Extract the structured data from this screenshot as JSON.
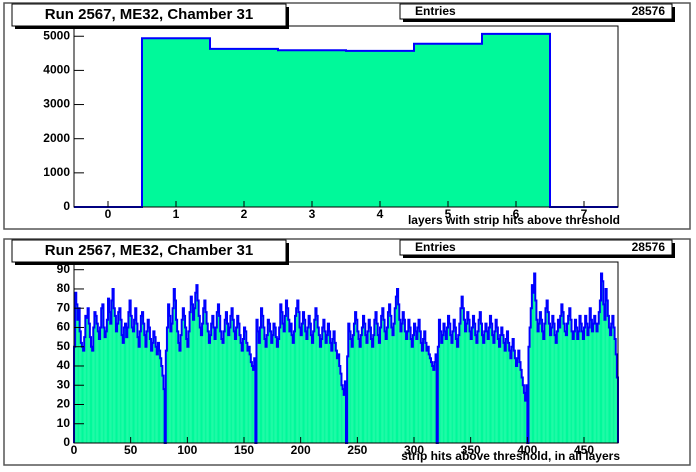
{
  "chart_data": [
    {
      "type": "histogram",
      "title": "Run 2567, ME32, Chamber 31",
      "stats": {
        "label": "Entries",
        "value": 28576
      },
      "x_label": "layers with strip hits above threshold",
      "values": [
        0,
        4940,
        4630,
        4590,
        4570,
        4780,
        5070,
        0
      ],
      "xlim": [
        -0.5,
        7.5
      ],
      "xticks": [
        0,
        1,
        2,
        3,
        4,
        5,
        6,
        7
      ],
      "ylim": [
        0,
        5300
      ],
      "yticks": [
        0,
        1000,
        2000,
        3000,
        4000,
        5000
      ],
      "color": "#00f99a",
      "line_color": "#0000ff"
    },
    {
      "type": "histogram",
      "title": "Run 2567, ME32, Chamber 31",
      "stats": {
        "label": "Entries",
        "value": 28576
      },
      "x_label": "strip hits above threshold, in all layers",
      "values": [
        50,
        78,
        72,
        64,
        70,
        58,
        52,
        50,
        48,
        55,
        66,
        65,
        70,
        62,
        55,
        50,
        48,
        60,
        68,
        66,
        62,
        58,
        54,
        60,
        70,
        72,
        60,
        55,
        58,
        64,
        75,
        68,
        62,
        74,
        80,
        70,
        66,
        58,
        62,
        68,
        70,
        64,
        56,
        52,
        60,
        62,
        55,
        60,
        68,
        74,
        66,
        60,
        58,
        64,
        70,
        62,
        55,
        50,
        58,
        66,
        68,
        62,
        56,
        50,
        58,
        64,
        60,
        54,
        48,
        52,
        58,
        55,
        50,
        46,
        52,
        48,
        44,
        40,
        35,
        28,
        0,
        48,
        60,
        72,
        66,
        58,
        62,
        70,
        80,
        74,
        64,
        58,
        52,
        48,
        56,
        64,
        70,
        66,
        60,
        54,
        50,
        58,
        68,
        76,
        72,
        64,
        70,
        78,
        82,
        74,
        66,
        60,
        56,
        62,
        70,
        74,
        68,
        62,
        58,
        52,
        56,
        62,
        66,
        60,
        54,
        60,
        68,
        72,
        66,
        58,
        54,
        52,
        58,
        64,
        68,
        62,
        56,
        60,
        66,
        70,
        64,
        58,
        54,
        60,
        66,
        62,
        56,
        52,
        48,
        54,
        60,
        58,
        52,
        48,
        50,
        46,
        42,
        40,
        38,
        44,
        0,
        64,
        58,
        52,
        60,
        70,
        66,
        60,
        54,
        50,
        56,
        64,
        62,
        58,
        52,
        56,
        62,
        60,
        55,
        50,
        54,
        60,
        72,
        68,
        62,
        58,
        66,
        74,
        70,
        64,
        58,
        62,
        56,
        52,
        58,
        66,
        70,
        74,
        68,
        60,
        56,
        62,
        68,
        64,
        58,
        54,
        60,
        66,
        62,
        56,
        52,
        58,
        64,
        70,
        66,
        60,
        56,
        50,
        54,
        60,
        64,
        58,
        52,
        56,
        62,
        58,
        52,
        48,
        54,
        58,
        52,
        48,
        44,
        46,
        40,
        36,
        30,
        28,
        25,
        32,
        0,
        45,
        62,
        58,
        54,
        50,
        56,
        62,
        68,
        64,
        58,
        54,
        50,
        56,
        60,
        66,
        62,
        56,
        52,
        58,
        64,
        60,
        54,
        50,
        56,
        64,
        68,
        62,
        56,
        52,
        60,
        66,
        70,
        64,
        58,
        54,
        60,
        68,
        72,
        66,
        60,
        56,
        62,
        70,
        76,
        80,
        72,
        64,
        58,
        62,
        68,
        64,
        58,
        54,
        58,
        64,
        60,
        54,
        50,
        56,
        62,
        58,
        54,
        60,
        64,
        58,
        52,
        48,
        54,
        58,
        52,
        48,
        50,
        46,
        44,
        42,
        40,
        38,
        42,
        46,
        0,
        50,
        64,
        58,
        52,
        56,
        62,
        58,
        54,
        60,
        66,
        62,
        56,
        52,
        58,
        64,
        60,
        54,
        50,
        56,
        62,
        70,
        76,
        70,
        64,
        58,
        62,
        68,
        64,
        58,
        54,
        60,
        66,
        62,
        56,
        52,
        58,
        64,
        68,
        62,
        56,
        52,
        58,
        62,
        58,
        54,
        60,
        66,
        62,
        56,
        52,
        58,
        64,
        60,
        54,
        50,
        56,
        60,
        56,
        52,
        48,
        54,
        58,
        52,
        48,
        44,
        50,
        54,
        48,
        44,
        40,
        44,
        48,
        42,
        38,
        34,
        30,
        26,
        22,
        30,
        0,
        50,
        60,
        70,
        82,
        78,
        88,
        74,
        64,
        58,
        62,
        68,
        64,
        58,
        54,
        62,
        70,
        74,
        68,
        62,
        56,
        60,
        66,
        62,
        56,
        52,
        58,
        64,
        60,
        66,
        72,
        68,
        62,
        58,
        56,
        62,
        66,
        70,
        64,
        58,
        54,
        58,
        64,
        60,
        54,
        58,
        66,
        62,
        58,
        54,
        60,
        66,
        62,
        56,
        60,
        70,
        64,
        58,
        62,
        66,
        62,
        58,
        62,
        68,
        74,
        88,
        84,
        72,
        64,
        80,
        74,
        66,
        60,
        56,
        62,
        66,
        60,
        54,
        46,
        34
      ],
      "xlim": [
        0,
        480
      ],
      "xticks": [
        0,
        50,
        100,
        150,
        200,
        250,
        300,
        350,
        400,
        450
      ],
      "ylim": [
        0,
        94
      ],
      "yticks": [
        0,
        10,
        20,
        30,
        40,
        50,
        60,
        70,
        80,
        90
      ],
      "color": "#00f99a",
      "line_color": "#0000ff"
    }
  ]
}
